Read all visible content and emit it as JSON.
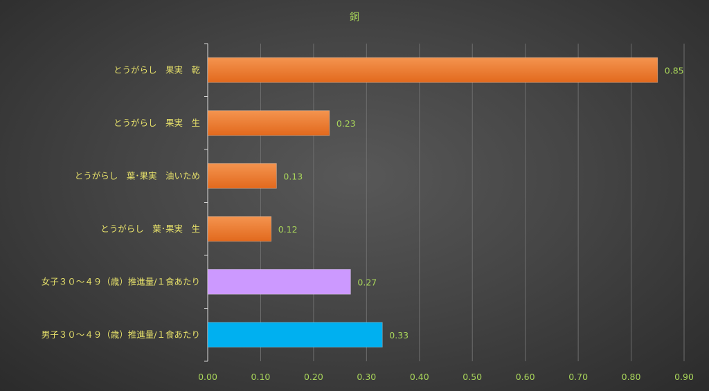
{
  "chart_data": {
    "type": "bar",
    "orientation": "horizontal",
    "title": "銅",
    "xlabel": "",
    "ylabel": "",
    "xlim": [
      0,
      0.9
    ],
    "tick_step": 0.1,
    "grid": true,
    "categories": [
      "とうがらし　果実　乾",
      "とうがらし　果実　生",
      "とうがらし　葉･果実　油いため",
      "とうがらし　葉･果実　生",
      "女子３０～４９（歳）推進量/１食あたり",
      "男子３０～４９（歳）推進量/１食あたり"
    ],
    "values": [
      0.85,
      0.23,
      0.13,
      0.12,
      0.27,
      0.33
    ],
    "value_labels": [
      "0.85",
      "0.23",
      "0.13",
      "0.12",
      "0.27",
      "0.33"
    ],
    "tick_labels": [
      "0.00",
      "0.10",
      "0.20",
      "0.30",
      "0.40",
      "0.50",
      "0.60",
      "0.70",
      "0.80",
      "0.90"
    ],
    "bar_colors": [
      "#ed7d31",
      "#ed7d31",
      "#ed7d31",
      "#ed7d31",
      "#cc99ff",
      "#00b0f0"
    ]
  }
}
